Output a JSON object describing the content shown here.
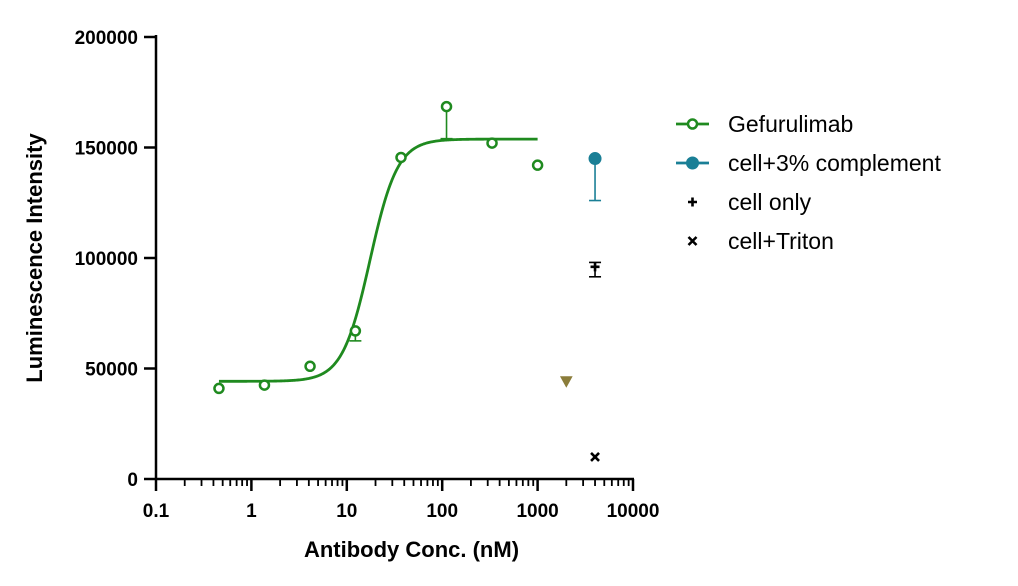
{
  "chart_data": {
    "type": "scatter",
    "xlabel": "Antibody Conc. (nM)",
    "ylabel": "Luminescence Intensity",
    "x_scale": "log",
    "xlim": [
      0.1,
      10000
    ],
    "ylim": [
      0,
      200000
    ],
    "x_ticks": [
      "0.1",
      "1",
      "10",
      "100",
      "1000",
      "10000"
    ],
    "y_ticks": [
      "0",
      "50000",
      "100000",
      "150000",
      "200000"
    ],
    "grid": false,
    "legend_position": "right",
    "series": [
      {
        "name": "Gefurulimab",
        "color": "#1f8a1f",
        "marker": "open-circle",
        "x": [
          0.457,
          1.37,
          4.12,
          12.3,
          37.0,
          111,
          333,
          1000
        ],
        "y": [
          41000,
          42500,
          51000,
          67000,
          145500,
          168500,
          152000,
          142000
        ],
        "error_up": [
          0,
          0,
          0,
          0,
          0,
          0,
          0,
          0
        ],
        "error_down": [
          0,
          0,
          0,
          4500,
          0,
          14500,
          0,
          0
        ]
      },
      {
        "name": "cell+3% complement",
        "color": "#1a7f96",
        "marker": "filled-circle",
        "x": [
          4000
        ],
        "y": [
          145000
        ],
        "error_up": [
          0
        ],
        "error_down": [
          19000
        ]
      },
      {
        "name": "cell only",
        "color": "#000000",
        "marker": "plus",
        "x": [
          4000
        ],
        "y": [
          96000
        ],
        "error_up": [
          2000
        ],
        "error_down": [
          4500
        ]
      },
      {
        "name": "cell+Triton",
        "color": "#000000",
        "marker": "cross",
        "x": [
          4000
        ],
        "y": [
          10000
        ],
        "error_up": [
          0
        ],
        "error_down": [
          0
        ]
      }
    ],
    "extra_points": [
      {
        "color": "#8b7d3a",
        "marker": "triangle-down",
        "x": 2000,
        "y": 44000
      }
    ],
    "fit_curve": {
      "series": "Gefurulimab",
      "model": "4PL",
      "bottom": 44200,
      "top": 153800,
      "ec50": 17.5,
      "hill": 3.0,
      "x_range": [
        0.457,
        1000
      ]
    }
  }
}
